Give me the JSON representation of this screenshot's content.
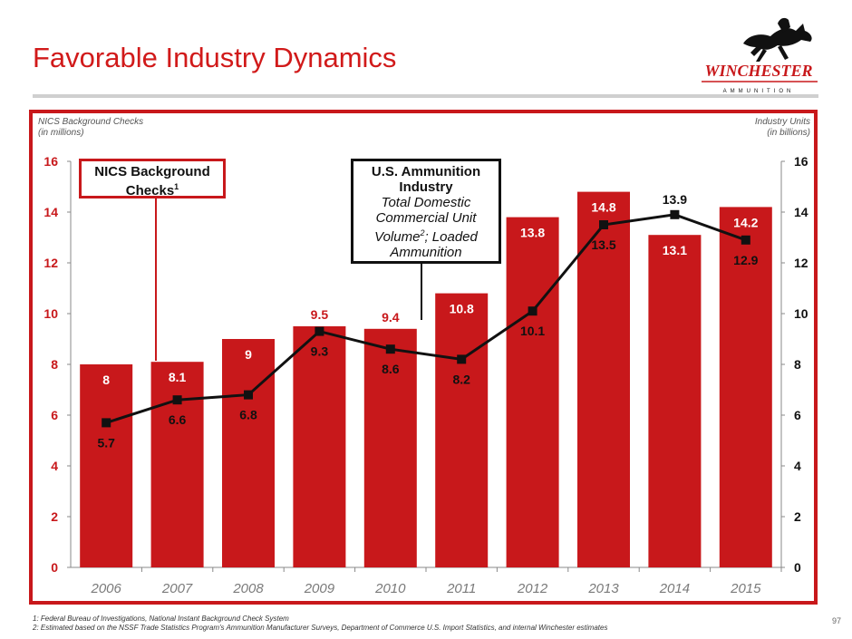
{
  "slide": {
    "title": "Favorable Industry Dynamics",
    "page_number": "97"
  },
  "logo": {
    "name": "WINCHESTER",
    "sub": "AMMUNITION"
  },
  "axes": {
    "left_title_line1": "NICS Background Checks",
    "left_title_line2": "(in millions)",
    "right_title_line1": "Industry Units",
    "right_title_line2": "(in billions)"
  },
  "legend": {
    "bars_label": "NICS Background",
    "bars_label2": "Checks",
    "bars_sup": "1",
    "line_label_bold1": "U.S. Ammunition",
    "line_label_bold2": "Industry",
    "line_label_italic1": "Total Domestic",
    "line_label_italic2": "Commercial Unit",
    "line_label_italic3a": "Volume",
    "line_label_italic3sup": "2",
    "line_label_italic3b": "; Loaded",
    "line_label_italic4": "Ammunition"
  },
  "footnotes": {
    "note1": "1: Federal Bureau of Investigations, National Instant Background Check System",
    "note2": "2: Estimated based on the NSSF Trade Statistics Program's Ammunition Manufacturer Surveys, Department of Commerce U.S. Import Statistics, and internal Winchester estimates"
  },
  "chart_data": {
    "type": "bar",
    "categories": [
      "2006",
      "2007",
      "2008",
      "2009",
      "2010",
      "2011",
      "2012",
      "2013",
      "2014",
      "2015"
    ],
    "series": [
      {
        "name": "NICS Background Checks",
        "type": "bar",
        "axis": "left",
        "values": [
          8,
          8.1,
          9,
          9.5,
          9.4,
          10.8,
          13.8,
          14.8,
          13.1,
          14.2
        ],
        "labels": [
          "8",
          "8.1",
          "9",
          "9.5",
          "9.4",
          "10.8",
          "13.8",
          "14.8",
          "13.1",
          "14.2"
        ]
      },
      {
        "name": "U.S. Ammunition Industry",
        "type": "line",
        "axis": "right",
        "values": [
          5.7,
          6.6,
          6.8,
          9.3,
          8.6,
          8.2,
          10.1,
          13.5,
          13.9,
          12.9
        ],
        "labels": [
          "5.7",
          "6.6",
          "6.8",
          "9.3",
          "8.6",
          "8.2",
          "10.1",
          "13.5",
          "13.9",
          "12.9"
        ]
      }
    ],
    "ylim_left": [
      0,
      16
    ],
    "ylim_right": [
      0,
      16
    ],
    "yticks": [
      "0",
      "2",
      "4",
      "6",
      "8",
      "10",
      "12",
      "14",
      "16"
    ],
    "colors": {
      "bar": "#c8181b",
      "line": "#111111",
      "left_ticks": "#c8181b",
      "right_ticks": "#111111",
      "x_ticks": "#7a7a7a"
    }
  }
}
